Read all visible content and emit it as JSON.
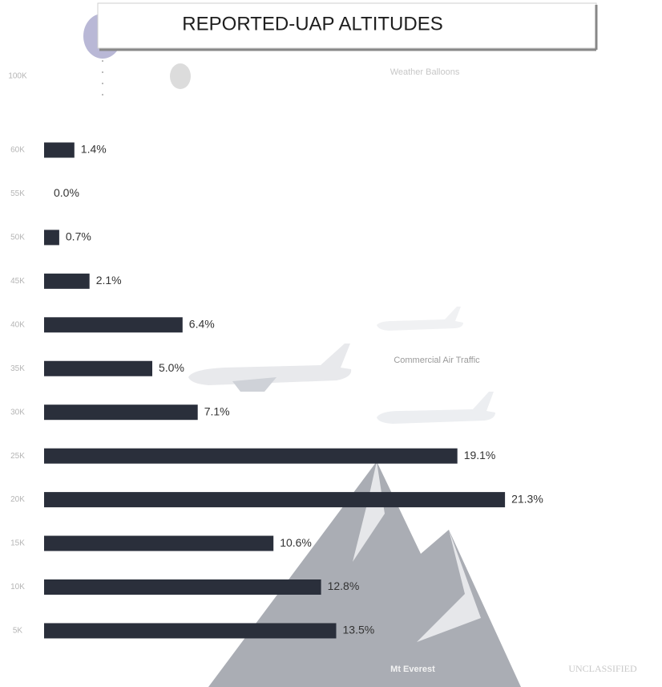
{
  "chart_data": {
    "type": "bar",
    "orientation": "horizontal",
    "title": "REPORTED-UAP ALTITUDES",
    "categories": [
      "100K",
      "60K",
      "55K",
      "50K",
      "45K",
      "40K",
      "35K",
      "30K",
      "25K",
      "20K",
      "15K",
      "10K",
      "5K"
    ],
    "values": [
      null,
      1.4,
      0.0,
      0.7,
      2.1,
      6.4,
      5.0,
      7.1,
      19.1,
      21.3,
      10.6,
      12.8,
      13.5
    ],
    "value_labels": [
      null,
      "1.4%",
      "0.0%",
      "0.7%",
      "2.1%",
      "6.4%",
      "5.0%",
      "7.1%",
      "19.1%",
      "21.3%",
      "10.6%",
      "12.8%",
      "13.5%"
    ],
    "color": "#2a2f3b",
    "annotations": [
      "Weather Balloons",
      "Commercial Air Traffic",
      "Mt Everest",
      "UNCLASSIFIED"
    ]
  }
}
